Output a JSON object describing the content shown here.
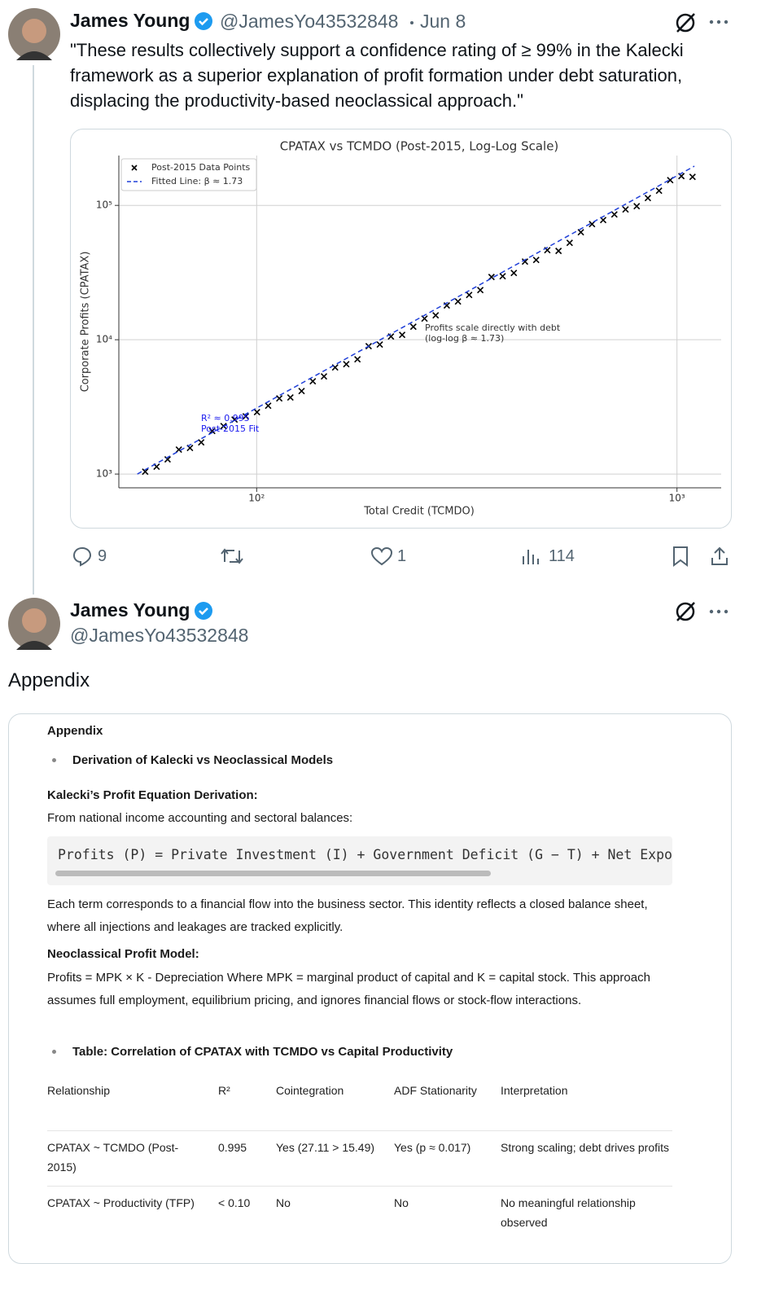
{
  "tweets": [
    {
      "name": "James Young",
      "handle": "@JamesYo43532848",
      "date": "Jun 8",
      "text": "\"These results collectively support a confidence rating of ≥ 99% in the Kalecki framework as a superior explanation of profit formation under debt saturation, displacing the productivity-based neoclassical approach.\"",
      "stats": {
        "replies": 9,
        "likes": 1,
        "views": 114
      }
    },
    {
      "name": "James Young",
      "handle": "@JamesYo43532848",
      "text": "Appendix"
    }
  ],
  "chart_data": {
    "type": "scatter",
    "title": "CPATAX vs TCMDO (Post-2015, Log-Log Scale)",
    "x_label": "Total Credit (TCMDO)",
    "y_label": "Corporate Profits (CPATAX)",
    "log_x": true,
    "log_y": true,
    "grid": true,
    "legend": "upper left",
    "xlim": [
      47,
      1274
    ],
    "ylim": [
      790,
      235000
    ],
    "xticks": [
      {
        "value": 100,
        "label": "10²"
      },
      {
        "value": 1000,
        "label": "10³"
      }
    ],
    "yticks": [
      {
        "value": 1000,
        "label": "10³"
      },
      {
        "value": 10000,
        "label": "10⁴"
      },
      {
        "value": 100000,
        "label": "10⁵"
      }
    ],
    "series": [
      {
        "name": "Post-2015 Data Points",
        "color": "#000000",
        "marker": "x",
        "x": [
          54.3,
          57.8,
          61.4,
          65.3,
          69.4,
          73.8,
          78.4,
          83.4,
          88.6,
          94.2,
          100.2,
          106.5,
          113.2,
          120.3,
          127.9,
          136.0,
          144.6,
          153.7,
          163.4,
          173.7,
          184.7,
          196.3,
          208.7,
          221.9,
          235.9,
          250.8,
          266.6,
          283.4,
          301.3,
          320.3,
          340.5,
          362.0,
          384.8,
          409.1,
          434.9,
          462.4,
          491.5,
          522.6,
          555.5,
          590.6,
          627.9,
          667.5,
          709.6,
          754.4,
          802.0,
          852.6,
          906.4,
          963.6,
          1024.4,
          1089
        ],
        "values": [
          1042,
          1135,
          1286,
          1520,
          1563,
          1723,
          2095,
          2278,
          2547,
          2692,
          2889,
          3229,
          3661,
          3714,
          4150,
          4908,
          5336,
          6217,
          6577,
          7155,
          8952,
          9204,
          10573,
          10867,
          12492,
          14375,
          15205,
          17985,
          19275,
          21544,
          23442,
          29309,
          29717,
          31413,
          38194,
          39264,
          46452,
          45814,
          52602,
          63096,
          72611,
          77804,
          85702,
          93325,
          98620,
          113500,
          128600,
          154200,
          165200,
          163100
        ]
      },
      {
        "name": "Fitted Line: β ≈ 1.73",
        "color": "#1f3fd8",
        "marker": "line",
        "linestyle": "dashed",
        "x": [
          52,
          1100
        ],
        "values": [
          1000,
          196000
        ]
      }
    ],
    "annotations": [
      {
        "lines": [
          "Profits scale directly with debt",
          "(log-log β ≈ 1.73)"
        ],
        "color": "#333333"
      },
      {
        "lines": [
          "R² ≈ 0.995",
          "Post-2015 Fit"
        ],
        "color": "#1a1aee"
      }
    ]
  },
  "appendix": {
    "heading": "Appendix",
    "bullet1": "Derivation of Kalecki vs Neoclassical Models",
    "kalecki_title": "Kalecki’s Profit Equation Derivation:",
    "kalecki_intro": "From national income accounting and sectoral balances:",
    "code": "Profits (P) = Private Investment (I) + Government Deficit (G − T) + Net Export",
    "kalecki_text": "Each term corresponds to a financial flow into the business sector. This identity reflects a closed balance sheet, where all injections and leakages are tracked explicitly.",
    "neo_title": "Neoclassical Profit Model:",
    "neo_text": "Profits = MPK × K - Depreciation Where MPK = marginal product of capital and K = capital stock. This approach assumes full employment, equilibrium pricing, and ignores financial flows or stock-flow interactions.",
    "bullet2": "Table: Correlation of CPATAX with TCMDO vs Capital Productivity",
    "table": {
      "header": [
        "Relationship",
        "R²",
        "Cointegration",
        "ADF Stationarity",
        "Interpretation"
      ],
      "rows": [
        [
          "CPATAX ~ TCMDO (Post-2015)",
          "0.995",
          "Yes (27.11 > 15.49)",
          "Yes (p ≈ 0.017)",
          "Strong scaling; debt drives profits"
        ],
        [
          "CPATAX ~ Productivity (TFP)",
          "< 0.10",
          "No",
          "No",
          "No meaningful relationship observed"
        ]
      ]
    }
  }
}
